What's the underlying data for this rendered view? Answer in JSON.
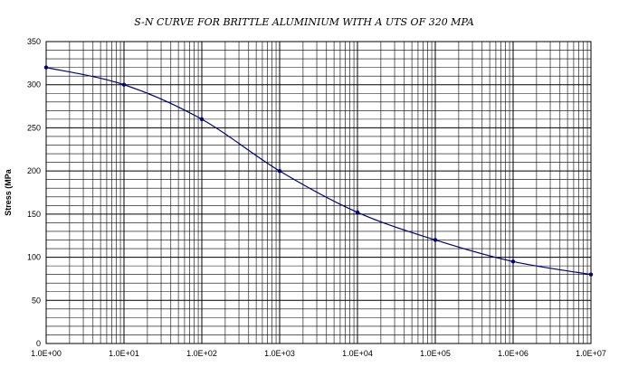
{
  "chart_data": {
    "type": "line",
    "title": "S-N CURVE FOR BRITTLE ALUMINIUM WITH A UTS OF 320 MPA",
    "xlabel": "",
    "ylabel": "Stress (MPa",
    "x_scale": "log",
    "xlim": [
      1,
      10000000
    ],
    "ylim": [
      0,
      350
    ],
    "y_major_step": 50,
    "y_minor_step": 10,
    "grid": true,
    "x_tick_labels": [
      "1.0E+00",
      "1.0E+01",
      "1.0E+02",
      "1.0E+03",
      "1.0E+04",
      "1.0E+05",
      "1.0E+06",
      "1.0E+07"
    ],
    "y_tick_labels": [
      "0",
      "50",
      "100",
      "150",
      "200",
      "250",
      "300",
      "350"
    ],
    "series": [
      {
        "color": "#000080",
        "x": [
          1,
          10,
          100,
          1000,
          10000,
          100000,
          1000000,
          10000000
        ],
        "y": [
          320,
          300,
          260,
          200,
          152,
          120,
          95,
          80
        ]
      }
    ]
  }
}
